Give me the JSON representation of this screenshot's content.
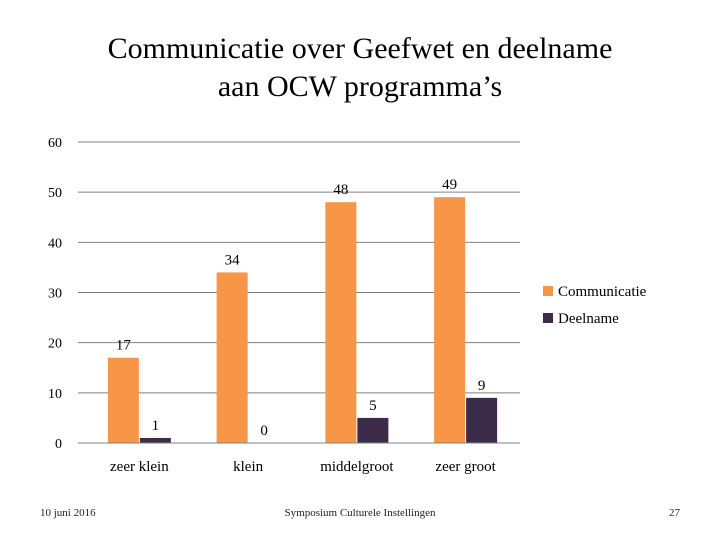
{
  "slide": {
    "title_line1": "Communicatie over Geefwet en deelname",
    "title_line2": "aan OCW programma’s"
  },
  "footer": {
    "date": "10 juni 2016",
    "center": "Symposium Culturele Instellingen",
    "page": "27"
  },
  "colors": {
    "communicatie": "#F79646",
    "deelname": "#3C2C4A",
    "gridline": "#808080"
  },
  "chart_data": {
    "type": "bar",
    "categories": [
      "zeer klein",
      "klein",
      "middelgroot",
      "zeer groot"
    ],
    "series": [
      {
        "name": "Communicatie",
        "values": [
          17,
          34,
          48,
          49
        ],
        "labels": [
          "17",
          "34",
          "48",
          "49"
        ]
      },
      {
        "name": "Deelname",
        "values": [
          1,
          0,
          5,
          9
        ],
        "labels": [
          "1",
          "0",
          "5",
          "9"
        ]
      }
    ],
    "yticks": [
      "0",
      "10",
      "20",
      "30",
      "40",
      "50",
      "60"
    ],
    "ylim": [
      0,
      60
    ],
    "grid": true,
    "legend": "right"
  }
}
